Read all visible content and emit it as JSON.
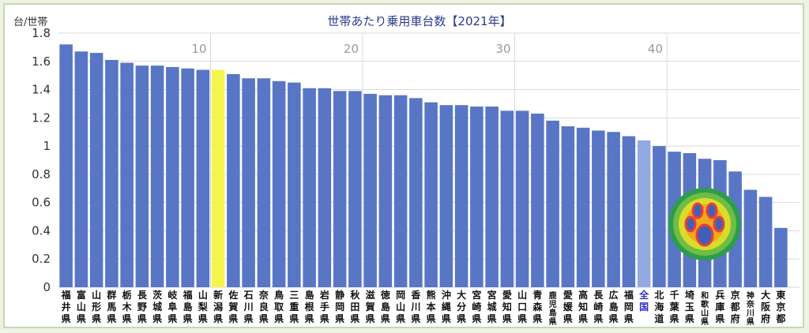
{
  "chart_data": {
    "type": "bar",
    "title": "世帯あたり乗用車台数【2021年】",
    "ylabel": "台/世帯",
    "xlabel": "",
    "ylim": [
      0,
      1.8
    ],
    "yticks": [
      "0",
      "0.2",
      "0.4",
      "0.6",
      "0.8",
      "1",
      "1.2",
      "1.4",
      "1.6",
      "1.8"
    ],
    "rank_markers": [
      {
        "label": "10",
        "after_rank": 10
      },
      {
        "label": "20",
        "after_rank": 20
      },
      {
        "label": "30",
        "after_rank": 30
      },
      {
        "label": "40",
        "after_rank": 40
      }
    ],
    "grid": true,
    "legend": "none",
    "colors": {
      "bar": "#5876c5",
      "highlight": "#f4f54c",
      "national": "#93a9e2"
    },
    "highlight_category": "新潟県",
    "national_category": "全国",
    "categories": [
      "福井県",
      "富山県",
      "山形県",
      "群馬県",
      "栃木県",
      "長野県",
      "茨城県",
      "岐阜県",
      "福島県",
      "山梨県",
      "新潟県",
      "佐賀県",
      "石川県",
      "奈良県",
      "鳥取県",
      "三重県",
      "島根県",
      "岩手県",
      "静岡県",
      "秋田県",
      "滋賀県",
      "徳島県",
      "岡山県",
      "香川県",
      "熊本県",
      "沖縄県",
      "大分県",
      "宮崎県",
      "宮城県",
      "愛知県",
      "山口県",
      "青森県",
      "鹿児島県",
      "愛媛県",
      "高知県",
      "長崎県",
      "広島県",
      "福岡県",
      "全国",
      "北海道",
      "千葉県",
      "埼玉県",
      "和歌山県",
      "兵庫県",
      "京都府",
      "神奈川県",
      "大阪府",
      "東京都"
    ],
    "values": [
      1.72,
      1.67,
      1.66,
      1.61,
      1.59,
      1.57,
      1.57,
      1.56,
      1.55,
      1.54,
      1.54,
      1.51,
      1.48,
      1.48,
      1.46,
      1.45,
      1.41,
      1.41,
      1.39,
      1.39,
      1.37,
      1.36,
      1.36,
      1.34,
      1.31,
      1.29,
      1.29,
      1.28,
      1.28,
      1.25,
      1.25,
      1.23,
      1.18,
      1.14,
      1.13,
      1.11,
      1.1,
      1.07,
      1.04,
      1.0,
      0.96,
      0.95,
      0.91,
      0.9,
      0.82,
      0.69,
      0.64,
      0.42
    ]
  },
  "logo": {
    "name": "paw-logo",
    "colors": [
      "#f2a81d",
      "#d9dc2a",
      "#6fbd44",
      "#2e9c4c",
      "#3e60b8",
      "#e83d3a"
    ]
  }
}
